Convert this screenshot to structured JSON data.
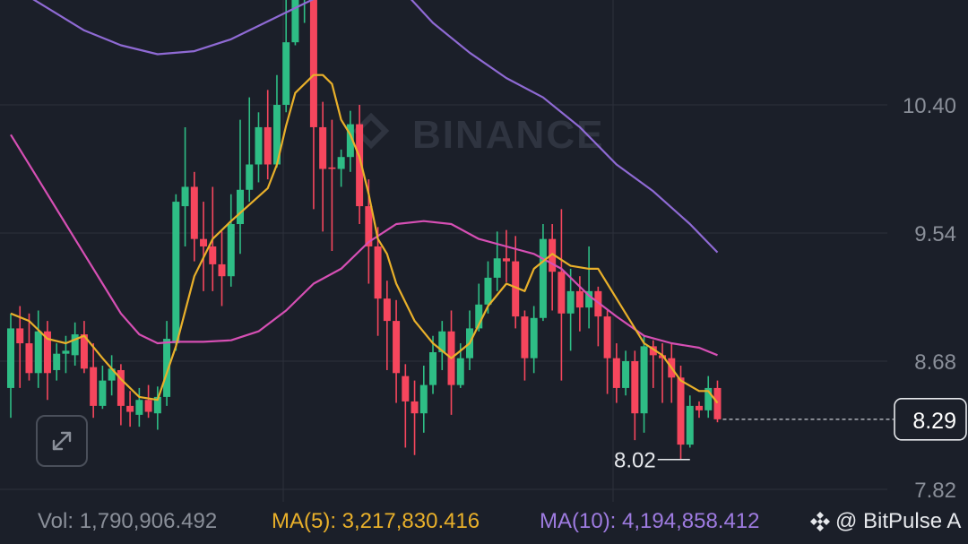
{
  "chart_data": {
    "type": "candlestick",
    "watermark": "BINANCE",
    "y_ticks": [
      10.4,
      9.54,
      8.68,
      7.82
    ],
    "y_tick_labels": [
      "10.40",
      "9.54",
      "8.68",
      "7.82"
    ],
    "last_price": 8.29,
    "last_price_label": "8.29",
    "low_marker": 8.02,
    "low_marker_label": "8.02",
    "grid": true,
    "candles": [
      [
        8.5,
        8.9,
        8.7,
        9.0,
        8.3
      ],
      [
        8.9,
        8.8,
        8.85,
        9.05,
        8.5
      ],
      [
        8.8,
        8.6,
        8.9,
        9.0,
        8.55
      ],
      [
        8.6,
        8.88,
        8.8,
        9.02,
        8.5
      ],
      [
        8.88,
        8.6,
        8.85,
        8.95,
        8.42
      ],
      [
        8.62,
        8.73,
        8.73,
        8.8,
        8.55
      ],
      [
        8.73,
        8.75,
        8.78,
        8.85,
        8.6
      ],
      [
        8.72,
        8.86,
        8.85,
        8.94,
        8.65
      ],
      [
        8.86,
        8.63,
        8.88,
        8.95,
        8.6
      ],
      [
        8.64,
        8.38,
        8.75,
        8.8,
        8.3
      ],
      [
        8.38,
        8.55,
        8.6,
        8.65,
        8.36
      ],
      [
        8.55,
        8.63,
        8.62,
        8.72,
        8.45
      ],
      [
        8.62,
        8.38,
        8.65,
        8.66,
        8.25
      ],
      [
        8.38,
        8.34,
        8.45,
        8.48,
        8.24
      ],
      [
        8.32,
        8.42,
        8.42,
        8.5,
        8.24
      ],
      [
        8.42,
        8.34,
        8.5,
        8.52,
        8.3
      ],
      [
        8.33,
        8.44,
        8.5,
        8.51,
        8.22
      ],
      [
        8.44,
        8.83,
        8.81,
        8.95,
        8.38
      ],
      [
        8.8,
        9.75,
        9.72,
        9.8,
        8.75
      ],
      [
        9.72,
        9.85,
        9.88,
        10.25,
        9.45
      ],
      [
        9.85,
        9.5,
        9.78,
        9.95,
        9.35
      ],
      [
        9.5,
        9.45,
        9.58,
        9.75,
        9.15
      ],
      [
        9.45,
        9.33,
        9.65,
        9.85,
        9.15
      ],
      [
        9.33,
        9.25,
        9.4,
        9.55,
        9.05
      ],
      [
        9.25,
        9.6,
        9.58,
        9.8,
        9.18
      ],
      [
        9.6,
        9.83,
        9.84,
        10.3,
        9.4
      ],
      [
        9.83,
        10.0,
        10.0,
        10.45,
        9.75
      ],
      [
        10.0,
        10.25,
        10.18,
        10.35,
        9.88
      ],
      [
        10.25,
        10.0,
        10.2,
        10.5,
        9.9
      ],
      [
        10.0,
        10.4,
        10.55,
        10.6,
        9.98
      ],
      [
        10.4,
        10.82,
        10.81,
        11.5,
        10.35
      ],
      [
        10.82,
        11.2,
        11.25,
        11.6,
        10.8
      ],
      [
        11.2,
        11.35,
        11.4,
        11.65,
        10.95
      ],
      [
        11.35,
        10.25,
        11.4,
        11.45,
        9.7
      ],
      [
        10.25,
        9.97,
        10.35,
        10.42,
        9.55
      ],
      [
        9.98,
        9.97,
        10.06,
        10.3,
        9.42
      ],
      [
        9.97,
        10.05,
        10.09,
        10.1,
        9.85
      ],
      [
        10.05,
        10.27,
        10.28,
        10.36,
        9.95
      ],
      [
        10.27,
        9.72,
        10.25,
        10.4,
        9.6
      ],
      [
        9.72,
        9.45,
        9.85,
        9.9,
        9.2
      ],
      [
        9.45,
        9.1,
        9.5,
        9.58,
        8.85
      ],
      [
        9.1,
        8.95,
        9.15,
        9.22,
        8.62
      ],
      [
        8.95,
        8.6,
        9.05,
        9.09,
        8.4
      ],
      [
        8.58,
        8.41,
        8.65,
        8.66,
        8.1
      ],
      [
        8.41,
        8.33,
        8.55,
        8.55,
        8.05
      ],
      [
        8.33,
        8.52,
        8.52,
        8.65,
        8.2
      ],
      [
        8.52,
        8.74,
        8.78,
        8.85,
        8.46
      ],
      [
        8.74,
        8.88,
        8.92,
        8.95,
        8.62
      ],
      [
        8.88,
        8.52,
        8.9,
        9.02,
        8.32
      ],
      [
        8.52,
        8.7,
        8.72,
        8.8,
        8.5
      ],
      [
        8.7,
        8.9,
        8.95,
        9.02,
        8.62
      ],
      [
        8.9,
        9.06,
        9.08,
        9.2,
        8.88
      ],
      [
        9.06,
        9.24,
        9.25,
        9.35,
        9.0
      ],
      [
        9.24,
        9.37,
        9.4,
        9.55,
        9.15
      ],
      [
        9.37,
        9.35,
        9.53,
        9.56,
        9.21
      ],
      [
        9.35,
        8.98,
        9.45,
        9.52,
        8.9
      ],
      [
        8.98,
        8.7,
        8.99,
        9.02,
        8.55
      ],
      [
        8.7,
        8.97,
        9.0,
        9.05,
        8.6
      ],
      [
        8.97,
        9.5,
        9.45,
        9.6,
        8.95
      ],
      [
        9.5,
        9.28,
        9.55,
        9.6,
        9.02
      ],
      [
        9.28,
        9.0,
        9.56,
        9.7,
        8.55
      ],
      [
        9.0,
        9.15,
        9.2,
        9.3,
        8.75
      ],
      [
        9.15,
        9.04,
        9.18,
        9.25,
        8.88
      ],
      [
        9.04,
        9.15,
        9.2,
        9.45,
        8.9
      ],
      [
        9.15,
        8.98,
        9.16,
        9.18,
        8.78
      ],
      [
        8.98,
        8.7,
        9.0,
        9.02,
        8.46
      ],
      [
        8.7,
        8.5,
        8.78,
        8.8,
        8.4
      ],
      [
        8.5,
        8.68,
        8.7,
        8.75,
        8.45
      ],
      [
        8.68,
        8.33,
        8.72,
        8.75,
        8.15
      ],
      [
        8.33,
        8.78,
        8.8,
        8.85,
        8.2
      ],
      [
        8.78,
        8.72,
        8.75,
        8.82,
        8.5
      ],
      [
        8.72,
        8.7,
        8.75,
        8.8,
        8.4
      ],
      [
        8.7,
        8.57,
        8.72,
        8.8,
        8.4
      ],
      [
        8.57,
        8.12,
        8.6,
        8.65,
        8.02
      ],
      [
        8.12,
        8.38,
        8.4,
        8.45,
        8.1
      ],
      [
        8.38,
        8.35,
        8.38,
        8.41,
        8.3
      ],
      [
        8.35,
        8.5,
        8.52,
        8.58,
        8.3
      ],
      [
        8.5,
        8.29,
        8.53,
        8.55,
        8.27
      ]
    ],
    "ma_fast": [
      [
        0,
        9.0
      ],
      [
        2,
        8.95
      ],
      [
        4,
        8.83
      ],
      [
        6,
        8.8
      ],
      [
        8,
        8.85
      ],
      [
        10,
        8.7
      ],
      [
        12,
        8.56
      ],
      [
        14,
        8.44
      ],
      [
        16,
        8.42
      ],
      [
        18,
        8.78
      ],
      [
        20,
        9.25
      ],
      [
        22,
        9.5
      ],
      [
        24,
        9.62
      ],
      [
        26,
        9.73
      ],
      [
        28,
        9.84
      ],
      [
        29,
        10.0
      ],
      [
        30,
        10.26
      ],
      [
        31,
        10.48
      ],
      [
        33,
        10.6
      ],
      [
        34,
        10.6
      ],
      [
        35,
        10.54
      ],
      [
        36,
        10.3
      ],
      [
        37,
        10.2
      ],
      [
        38,
        10.05
      ],
      [
        39,
        9.8
      ],
      [
        40,
        9.5
      ],
      [
        41,
        9.4
      ],
      [
        42,
        9.2
      ],
      [
        44,
        8.95
      ],
      [
        46,
        8.8
      ],
      [
        48,
        8.7
      ],
      [
        50,
        8.8
      ],
      [
        52,
        9.05
      ],
      [
        54,
        9.2
      ],
      [
        56,
        9.15
      ],
      [
        57,
        9.3
      ],
      [
        59,
        9.4
      ],
      [
        61,
        9.32
      ],
      [
        63,
        9.3
      ],
      [
        64,
        9.3
      ],
      [
        65,
        9.2
      ],
      [
        67,
        9.0
      ],
      [
        69,
        8.8
      ],
      [
        71,
        8.72
      ],
      [
        73,
        8.55
      ],
      [
        75,
        8.48
      ],
      [
        76,
        8.48
      ],
      [
        77,
        8.4
      ]
    ],
    "ma_mid": [
      [
        0,
        10.2
      ],
      [
        3,
        9.9
      ],
      [
        6,
        9.6
      ],
      [
        8,
        9.4
      ],
      [
        10,
        9.2
      ],
      [
        12,
        9.0
      ],
      [
        14,
        8.86
      ],
      [
        16,
        8.8
      ],
      [
        18,
        8.81
      ],
      [
        21,
        8.81
      ],
      [
        24,
        8.82
      ],
      [
        27,
        8.88
      ],
      [
        30,
        9.02
      ],
      [
        33,
        9.2
      ],
      [
        36,
        9.3
      ],
      [
        39,
        9.48
      ],
      [
        42,
        9.6
      ],
      [
        45,
        9.62
      ],
      [
        48,
        9.6
      ],
      [
        51,
        9.5
      ],
      [
        54,
        9.45
      ],
      [
        57,
        9.4
      ],
      [
        60,
        9.3
      ],
      [
        63,
        9.12
      ],
      [
        66,
        8.98
      ],
      [
        69,
        8.85
      ],
      [
        72,
        8.8
      ],
      [
        75,
        8.77
      ],
      [
        77,
        8.72
      ]
    ],
    "ma_slow": [
      [
        0,
        11.2
      ],
      [
        4,
        11.05
      ],
      [
        8,
        10.9
      ],
      [
        12,
        10.8
      ],
      [
        16,
        10.74
      ],
      [
        20,
        10.76
      ],
      [
        24,
        10.84
      ],
      [
        28,
        10.96
      ],
      [
        32,
        11.08
      ],
      [
        36,
        11.2
      ],
      [
        40,
        11.25
      ],
      [
        43,
        11.15
      ],
      [
        46,
        10.95
      ],
      [
        50,
        10.75
      ],
      [
        54,
        10.58
      ],
      [
        58,
        10.45
      ],
      [
        62,
        10.25
      ],
      [
        66,
        10.0
      ],
      [
        70,
        9.82
      ],
      [
        74,
        9.6
      ],
      [
        77,
        9.41
      ]
    ],
    "colors": {
      "up": "#2ebd85",
      "down": "#f6465d",
      "ma_fast": "#e9b02a",
      "ma_mid": "#d64fb4",
      "ma_slow": "#8f6ad4",
      "grid": "#2c313c",
      "axis_text": "#8a8f99",
      "background": "#1b1f29"
    }
  },
  "footer": {
    "vol": "Vol: 1,790,906.492",
    "ma5": "MA(5): 3,217,830.416",
    "ma10": "MA(10): 4,194,858.412",
    "brand": "@ BitPulse A",
    "brand_icon": "binance-diamond-icon"
  },
  "expand_icon": "expand-arrows-icon"
}
